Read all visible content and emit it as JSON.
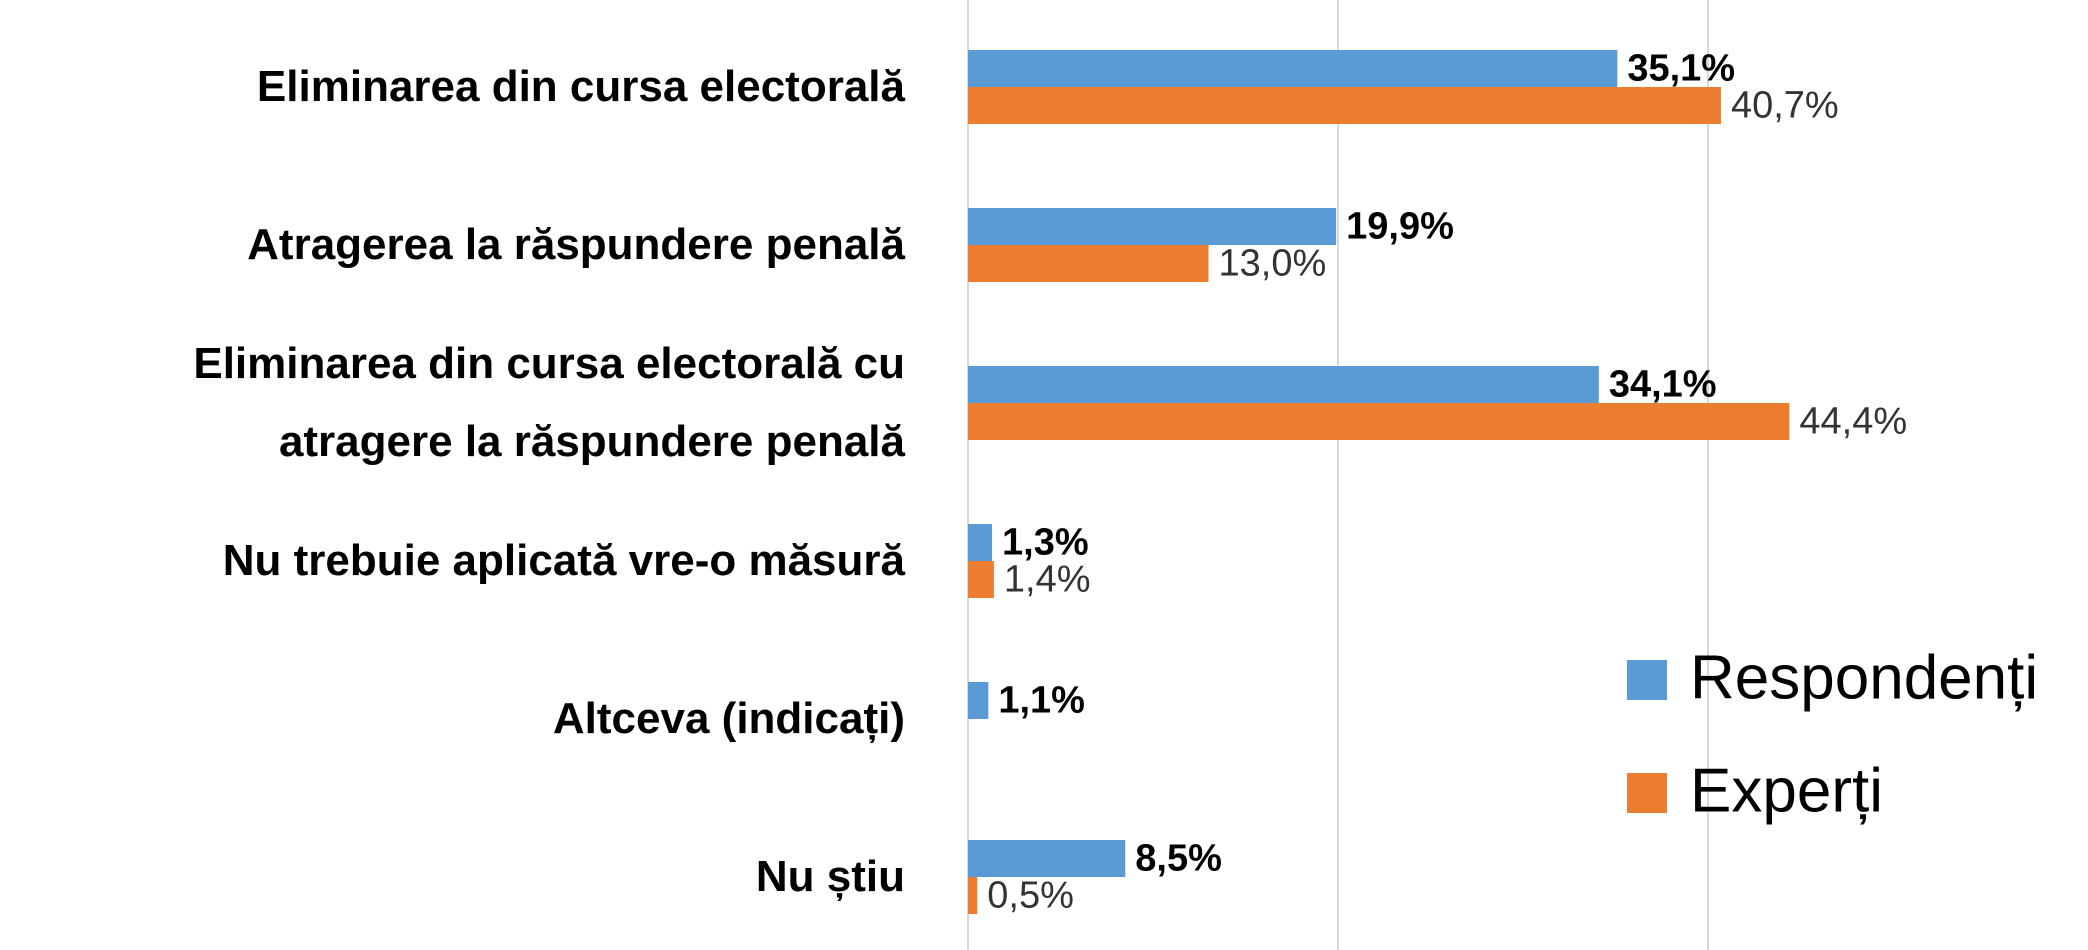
{
  "chart_data": {
    "type": "bar",
    "orientation": "horizontal",
    "categories": [
      "Eliminarea din cursa electorală",
      "Atragerea la răspundere penală",
      "Eliminarea din cursa electorală cu\natragere la răspundere penală",
      "Nu trebuie aplicată vre-o măsură",
      "Altceva (indicați)",
      "Nu știu"
    ],
    "series": [
      {
        "name": "Respondenți",
        "color": "#5b9bd5",
        "values": [
          35.1,
          19.9,
          34.1,
          1.3,
          1.1,
          8.5
        ],
        "value_labels": [
          "35,1%",
          "19,9%",
          "34,1%",
          "1,3%",
          "1,1%",
          "8,5%"
        ]
      },
      {
        "name": "Experți",
        "color": "#ed7d31",
        "values": [
          40.7,
          13.0,
          44.4,
          1.4,
          null,
          0.5
        ],
        "value_labels": [
          "40,7%",
          "13,0%",
          "44,4%",
          "1,4%",
          null,
          "0,5%"
        ]
      }
    ],
    "xlim": [
      0,
      60
    ],
    "xticks": [
      0,
      20,
      40
    ],
    "grid": true,
    "legend": "lower right"
  }
}
